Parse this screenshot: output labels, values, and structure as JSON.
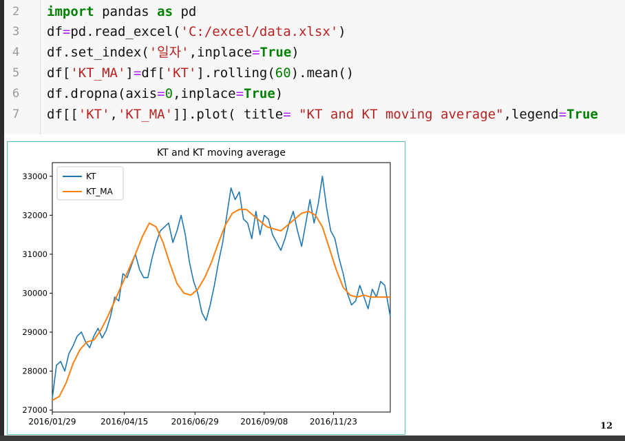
{
  "code": {
    "lines": [
      {
        "no": "2",
        "tokens": [
          [
            "kw",
            "import"
          ],
          [
            "t",
            " pandas "
          ],
          [
            "kw",
            "as"
          ],
          [
            "t",
            " pd"
          ]
        ]
      },
      {
        "no": "3",
        "tokens": [
          [
            "t",
            "df"
          ],
          [
            "op",
            "="
          ],
          [
            "t",
            "pd.read_excel("
          ],
          [
            "str",
            "'C:/excel/data.xlsx'"
          ],
          [
            "t",
            ")"
          ]
        ]
      },
      {
        "no": "4",
        "tokens": [
          [
            "t",
            "df.set_index("
          ],
          [
            "str",
            "'일자'"
          ],
          [
            "t",
            ",inplace"
          ],
          [
            "op",
            "="
          ],
          [
            "true",
            "True"
          ],
          [
            "t",
            ")"
          ]
        ]
      },
      {
        "no": "5",
        "tokens": [
          [
            "t",
            "df["
          ],
          [
            "str",
            "'KT_MA'"
          ],
          [
            "t",
            "]"
          ],
          [
            "op",
            "="
          ],
          [
            "t",
            "df["
          ],
          [
            "str",
            "'KT'"
          ],
          [
            "t",
            "].rolling("
          ],
          [
            "num",
            "60"
          ],
          [
            "t",
            ").mean()"
          ]
        ]
      },
      {
        "no": "6",
        "tokens": [
          [
            "t",
            "df.dropna(axis"
          ],
          [
            "op",
            "="
          ],
          [
            "num",
            "0"
          ],
          [
            "t",
            ",inplace"
          ],
          [
            "op",
            "="
          ],
          [
            "true",
            "True"
          ],
          [
            "t",
            ")"
          ]
        ]
      },
      {
        "no": "7",
        "tokens": [
          [
            "t",
            "df[["
          ],
          [
            "str",
            "'KT'"
          ],
          [
            "t",
            ","
          ],
          [
            "str",
            "'KT_MA'"
          ],
          [
            "t",
            "]].plot( title"
          ],
          [
            "op",
            "="
          ],
          [
            "t",
            " "
          ],
          [
            "str",
            "\"KT and KT moving average\""
          ],
          [
            "t",
            ",legend"
          ],
          [
            "op",
            "="
          ],
          [
            "true",
            "True"
          ]
        ]
      }
    ]
  },
  "page_number": "12",
  "chart_data": {
    "type": "line",
    "title": "KT and KT moving average",
    "xlabel": "",
    "ylabel": "",
    "x_ticks": [
      "2016/01/29",
      "2016/04/15",
      "2016/06/29",
      "2016/09/08",
      "2016/11/23"
    ],
    "x_tick_index": [
      0,
      52,
      103,
      153,
      203
    ],
    "y_ticks": [
      27000,
      28000,
      29000,
      30000,
      31000,
      32000,
      33000
    ],
    "ylim": [
      26950,
      33350
    ],
    "x_count": 245,
    "legend_position": "upper-left",
    "series": [
      {
        "name": "KT",
        "color": "#1f77b4",
        "x": [
          0,
          3,
          6,
          9,
          12,
          15,
          18,
          21,
          24,
          27,
          30,
          33,
          36,
          39,
          42,
          45,
          48,
          51,
          54,
          57,
          60,
          63,
          66,
          69,
          72,
          75,
          78,
          81,
          84,
          87,
          90,
          93,
          96,
          99,
          102,
          105,
          108,
          111,
          114,
          117,
          120,
          123,
          126,
          129,
          132,
          135,
          138,
          141,
          144,
          147,
          150,
          153,
          156,
          159,
          162,
          165,
          168,
          171,
          174,
          177,
          180,
          183,
          186,
          189,
          192,
          195,
          198,
          201,
          204,
          207,
          210,
          213,
          216,
          219,
          222,
          225,
          228,
          231,
          234,
          237,
          240,
          244
        ],
        "values": [
          27300,
          28150,
          28250,
          28000,
          28450,
          28650,
          28900,
          29000,
          28750,
          28600,
          28900,
          29100,
          28850,
          29050,
          29400,
          29900,
          29800,
          30500,
          30400,
          30700,
          31000,
          30600,
          30400,
          30400,
          30900,
          31300,
          31600,
          31700,
          31800,
          31300,
          31600,
          32000,
          31500,
          30800,
          30300,
          30000,
          29500,
          29300,
          29700,
          30200,
          30800,
          31300,
          32000,
          32700,
          32400,
          32600,
          31900,
          31800,
          31400,
          32100,
          31500,
          32000,
          31900,
          31500,
          31300,
          31100,
          31400,
          31800,
          32100,
          31600,
          31200,
          31800,
          32400,
          31800,
          32300,
          33000,
          32200,
          31600,
          31400,
          30900,
          30500,
          30000,
          29700,
          29800,
          30200,
          29900,
          29600,
          30100,
          29900,
          30300,
          30200,
          29400
        ]
      },
      {
        "name": "KT_MA",
        "color": "#ff7f0e",
        "x": [
          0,
          5,
          10,
          15,
          20,
          25,
          30,
          35,
          40,
          45,
          50,
          55,
          60,
          65,
          70,
          75,
          80,
          85,
          90,
          95,
          100,
          105,
          110,
          115,
          120,
          125,
          130,
          135,
          140,
          145,
          150,
          155,
          160,
          165,
          170,
          175,
          180,
          185,
          190,
          195,
          200,
          205,
          210,
          215,
          220,
          225,
          230,
          235,
          240,
          244
        ],
        "values": [
          27250,
          27350,
          27700,
          28200,
          28550,
          28750,
          28800,
          29050,
          29400,
          29800,
          30200,
          30600,
          31000,
          31450,
          31800,
          31700,
          31300,
          30750,
          30250,
          30000,
          29950,
          30100,
          30400,
          30800,
          31300,
          31750,
          32050,
          32150,
          32150,
          32000,
          31850,
          31700,
          31650,
          31600,
          31750,
          31900,
          32050,
          32100,
          32000,
          31700,
          31150,
          30600,
          30150,
          29950,
          29900,
          29950,
          29900,
          29900,
          29900,
          29900
        ]
      }
    ]
  }
}
